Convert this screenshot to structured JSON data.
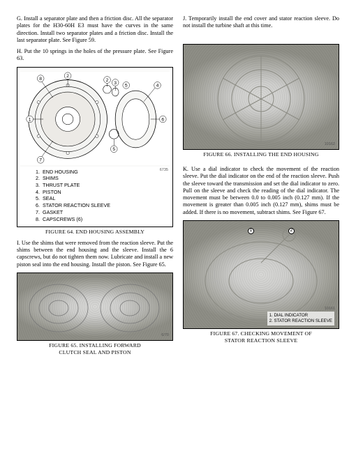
{
  "left": {
    "p_g": "G. Install a separator plate and then a friction disc. All the separator plates for the H30-60H E3 must have the curves in the same direction. Install two separator plates and a friction disc. Install the last separator plate. See Figure 59.",
    "p_h": "H. Put the 10 springs in the holes of the pressure plate. See Figure 63.",
    "fig64": {
      "caption": "FIGURE 64. END HOUSING ASSEMBLY",
      "ref": "6735",
      "legend": [
        {
          "n": "1.",
          "t": "END HOUSING"
        },
        {
          "n": "2.",
          "t": "SHIMS"
        },
        {
          "n": "3.",
          "t": "THRUST PLATE"
        },
        {
          "n": "4.",
          "t": "PISTON"
        },
        {
          "n": "5.",
          "t": "SEAL"
        },
        {
          "n": "6.",
          "t": "STATOR REACTION SLEEVE"
        },
        {
          "n": "7.",
          "t": "GASKET"
        },
        {
          "n": "8.",
          "t": "CAPSCREWS (6)"
        }
      ]
    },
    "p_i": "I. Use the shims that were removed from the reaction sleeve. Put the shims between the end housing and the sleeve. Install the 6 capscrews, but do not tighten them now. Lubricate and install a new piston seal into the end housing. Install the piston. See Figure 65.",
    "fig65": {
      "caption_l1": "FIGURE 65. INSTALLING FORWARD",
      "caption_l2": "CLUTCH SEAL AND PISTON",
      "ref": "6/70"
    }
  },
  "right": {
    "p_j": "J. Temporarily install the end cover and stator reaction sleeve. Do not install the turbine shaft at this time.",
    "fig66": {
      "caption": "FIGURE 66. INSTALLING THE END HOUSING",
      "ref": "10162"
    },
    "p_k": "K. Use a dial indicator to check the movement of the reaction sleeve. Put the dial indicator on the end of the reaction sleeve. Push the sleeve toward the transmission and set the dial indicator to zero. Pull on the sleeve and check the reading of the dial indicator. The movement must be between 0.0 to 0.005 inch (0.127 mm). If the movement is greater than 0.005 inch (0.127 mm), shims must be added. If there is no movement, subtract shims. See Figure 67.",
    "fig67": {
      "caption_l1": "FIGURE 67. CHECKING MOVEMENT OF",
      "caption_l2": "STATOR REACTION SLEEVE",
      "ref": "10161",
      "labels": {
        "l1": "1.  DIAL INDICATOR",
        "l2": "2.  STATOR REACTION SLEEVE"
      },
      "callouts": {
        "c1": "1",
        "c2": "2"
      }
    }
  }
}
